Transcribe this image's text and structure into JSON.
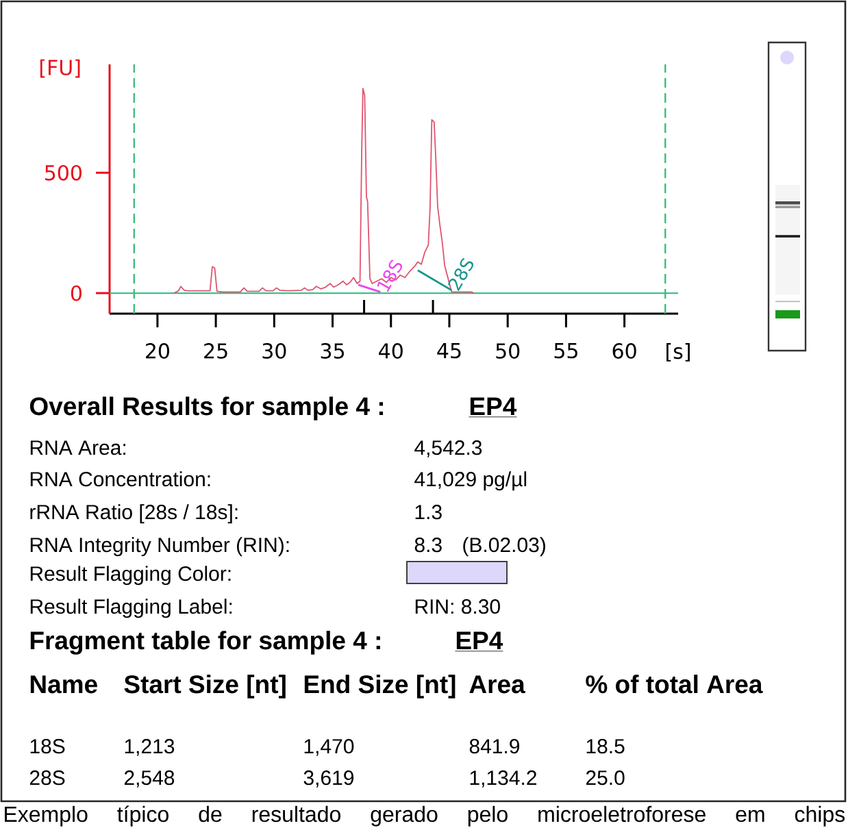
{
  "chart_data": {
    "type": "line",
    "xlabel": "[s]",
    "ylabel": "[FU]",
    "xlim": [
      15.9,
      64.6
    ],
    "ylim": [
      -85,
      950
    ],
    "xticks": [
      20,
      25,
      30,
      35,
      {
        "value": 37.7,
        "label": null
      },
      40,
      {
        "value": 43.6,
        "label": null
      },
      45,
      50,
      55,
      60
    ],
    "yticks": [
      0,
      500
    ],
    "series": [
      {
        "color": "#e05470",
        "x": [
          21.4,
          21.8,
          22.0,
          22.3,
          22.6,
          24.5,
          24.6,
          24.7,
          24.9,
          25.1,
          25.6,
          27.1,
          27.4,
          27.7,
          28.7,
          29.0,
          29.3,
          29.9,
          30.2,
          30.5,
          31.2,
          32.3,
          32.6,
          32.9,
          33.3,
          33.6,
          34.0,
          34.4,
          34.8,
          35.1,
          35.5,
          35.9,
          36.2,
          36.5,
          36.8,
          37.1,
          37.35,
          37.5,
          37.6,
          37.75,
          37.9,
          38.0,
          38.2,
          38.4,
          38.8,
          39.2,
          39.6,
          40.0,
          40.4,
          40.8,
          41.2,
          41.6,
          42.0,
          42.3,
          42.6,
          42.9,
          43.2,
          43.35,
          43.5,
          43.7,
          43.85,
          44.0,
          44.2,
          44.4,
          44.6,
          44.9,
          45.2,
          46.9,
          47.1
        ],
        "values": [
          0,
          10,
          28,
          12,
          10,
          10,
          60,
          110,
          105,
          8,
          5,
          5,
          22,
          8,
          8,
          22,
          10,
          10,
          22,
          12,
          10,
          12,
          22,
          12,
          15,
          28,
          18,
          25,
          40,
          25,
          35,
          50,
          35,
          45,
          65,
          40,
          50,
          600,
          850,
          820,
          400,
          380,
          60,
          40,
          50,
          60,
          45,
          65,
          55,
          75,
          65,
          90,
          110,
          130,
          120,
          170,
          200,
          350,
          720,
          710,
          550,
          360,
          280,
          210,
          115,
          60,
          5,
          5,
          0
        ]
      },
      {
        "name": "18S",
        "color": "#ee44ee",
        "x": [
          37.2,
          39.1
        ],
        "values": [
          35,
          5
        ]
      },
      {
        "name": "28S",
        "color": "#17968a",
        "x": [
          42.3,
          45.2
        ],
        "values": [
          95,
          12
        ]
      }
    ],
    "ref_lines": [
      {
        "axis": "y",
        "value": 0,
        "color": "#3cc08a",
        "line_style": "solid"
      },
      {
        "axis": "x",
        "value": 18.0,
        "color": "#3dbe7a",
        "line_style": "dashed"
      },
      {
        "axis": "x",
        "value": 63.5,
        "color": "#3dbe7a",
        "line_style": "dashed"
      }
    ],
    "annotations": [
      "Overall Results for sample 4 :",
      "EP4",
      "RNA Area:",
      "4,542.3",
      "RNA Concentration:",
      "41,029 pg/µl",
      "rRNA Ratio [28s / 18s]:",
      "1.3",
      "RNA Integrity Number (RIN):",
      "8.3",
      "(B.02.03)",
      "Result Flagging Color:",
      "Result Flagging Label:",
      "RIN: 8.30",
      "Fragment table for sample 4 :",
      "EP4",
      "Name",
      "Start Size [nt]",
      "End Size [nt]",
      "Area",
      "% of total Area",
      "18S",
      "1,213",
      "1,470",
      "841.9",
      "18.5",
      "28S",
      "2,548",
      "3,619",
      "1,134.2",
      "25.0",
      "Exemplo típico de resultado gerado pelo microeletroforese em chips"
    ]
  }
}
